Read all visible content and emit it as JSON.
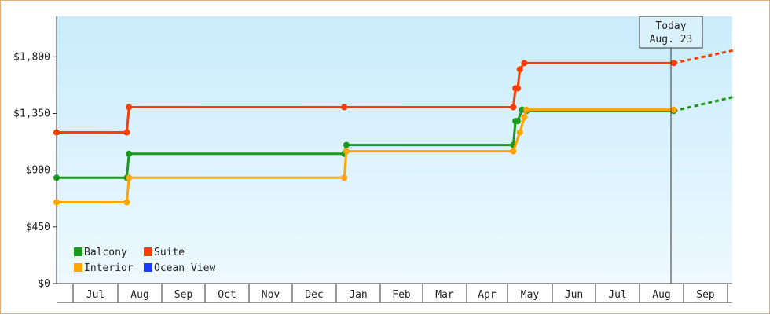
{
  "chart_data": {
    "type": "line",
    "step": true,
    "y_ticks": [
      "$0",
      "$450",
      "$900",
      "$1,350",
      "$1,800"
    ],
    "y_tick_values": [
      0,
      450,
      900,
      1350,
      1800
    ],
    "ylim": [
      0,
      2120
    ],
    "x_months": [
      "Jul",
      "Aug",
      "Sep",
      "Oct",
      "Nov",
      "Dec",
      "Jan",
      "Feb",
      "Mar",
      "Apr",
      "May",
      "Jun",
      "Jul",
      "Aug",
      "Sep"
    ],
    "today": {
      "line1": "Today",
      "line2": "Aug. 23"
    },
    "legend": [
      {
        "name": "Balcony",
        "color": "#1a9a1a"
      },
      {
        "name": "Suite",
        "color": "#ff3c00"
      },
      {
        "name": "Interior",
        "color": "#ffa500"
      },
      {
        "name": "Ocean View",
        "color": "#1a3cff"
      }
    ],
    "series": [
      {
        "name": "Suite",
        "color": "#ff3c00",
        "points": [
          {
            "x": 0.0,
            "y": 1200
          },
          {
            "x": 1.6,
            "y": 1200
          },
          {
            "x": 1.65,
            "y": 1400
          },
          {
            "x": 6.55,
            "y": 1400
          },
          {
            "x": 10.4,
            "y": 1400
          },
          {
            "x": 10.45,
            "y": 1550
          },
          {
            "x": 10.5,
            "y": 1550
          },
          {
            "x": 10.55,
            "y": 1700
          },
          {
            "x": 10.65,
            "y": 1750
          },
          {
            "x": 14.05,
            "y": 1750
          }
        ],
        "projection": [
          {
            "x": 14.05,
            "y": 1750
          },
          {
            "x": 15.4,
            "y": 1850
          }
        ]
      },
      {
        "name": "Balcony",
        "color": "#1a9a1a",
        "points": [
          {
            "x": 0.0,
            "y": 840
          },
          {
            "x": 1.6,
            "y": 840
          },
          {
            "x": 1.65,
            "y": 1030
          },
          {
            "x": 6.55,
            "y": 1030
          },
          {
            "x": 6.6,
            "y": 1100
          },
          {
            "x": 10.4,
            "y": 1100
          },
          {
            "x": 10.45,
            "y": 1290
          },
          {
            "x": 10.5,
            "y": 1290
          },
          {
            "x": 10.6,
            "y": 1380
          },
          {
            "x": 10.7,
            "y": 1370
          },
          {
            "x": 14.05,
            "y": 1370
          }
        ],
        "projection": [
          {
            "x": 14.05,
            "y": 1370
          },
          {
            "x": 15.4,
            "y": 1480
          }
        ]
      },
      {
        "name": "Interior",
        "color": "#ffa500",
        "points": [
          {
            "x": 0.0,
            "y": 645
          },
          {
            "x": 1.6,
            "y": 645
          },
          {
            "x": 1.65,
            "y": 840
          },
          {
            "x": 6.55,
            "y": 840
          },
          {
            "x": 6.6,
            "y": 1050
          },
          {
            "x": 10.4,
            "y": 1050
          },
          {
            "x": 10.55,
            "y": 1200
          },
          {
            "x": 10.65,
            "y": 1320
          },
          {
            "x": 10.7,
            "y": 1380
          },
          {
            "x": 14.05,
            "y": 1380
          }
        ],
        "projection": []
      }
    ]
  }
}
